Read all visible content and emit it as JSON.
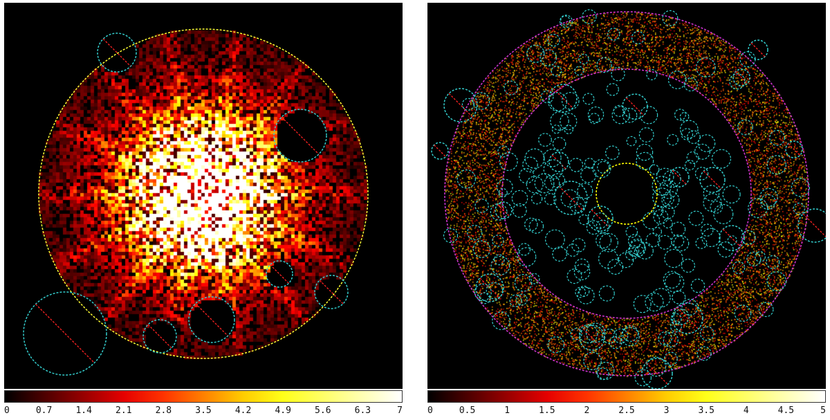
{
  "colors": {
    "background": "#000000",
    "inner_boundary_left": "#ffff33",
    "inner_boundary_right": "#ffff00",
    "annulus_boundary": "#cc33cc",
    "excluded_source": "#33cccc",
    "exclusion_slash": "#ff2222"
  },
  "left_panel": {
    "colorbar": {
      "scale": "heat",
      "ticks": [
        "0",
        "0.7",
        "1.4",
        "2.1",
        "2.8",
        "3.5",
        "4.2",
        "4.9",
        "5.6",
        "6.3",
        "7"
      ]
    }
  },
  "right_panel": {
    "colorbar": {
      "scale": "heat",
      "ticks": [
        "0",
        "0.5",
        "1",
        "1.5",
        "2",
        "2.5",
        "3",
        "3.5",
        "4",
        "4.5",
        "5"
      ]
    }
  }
}
